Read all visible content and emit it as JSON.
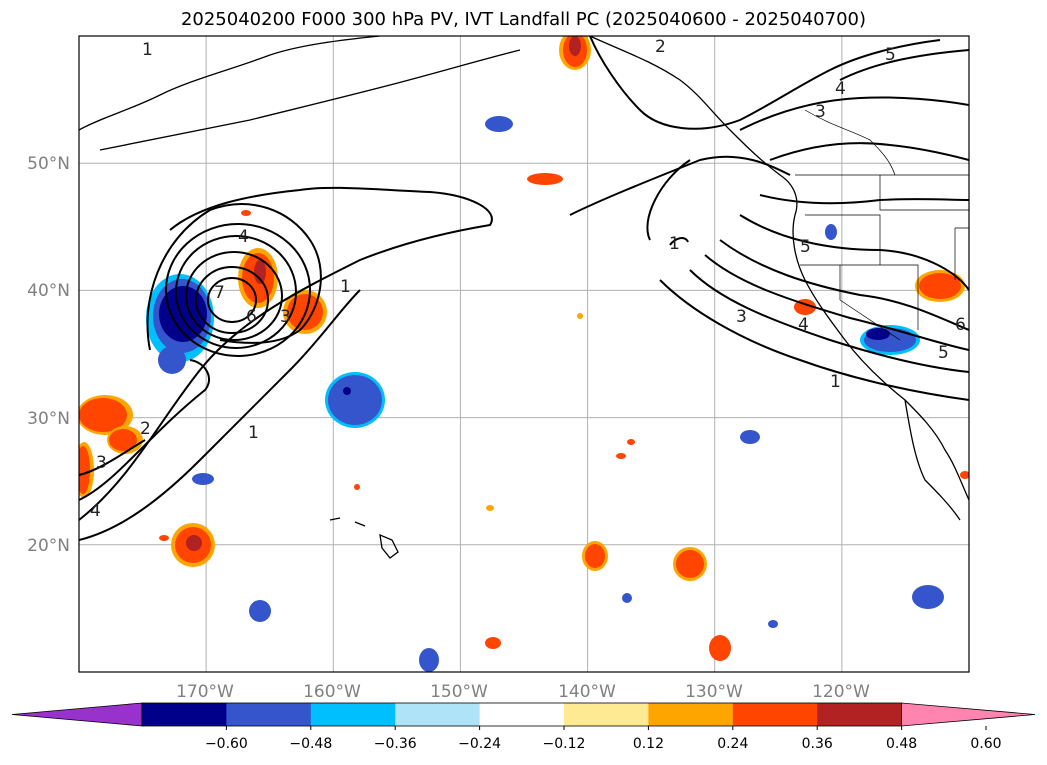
{
  "title": "2025040200 F000 300 hPa PV, IVT Landfall PC (2025040600 - 2025040700)",
  "map": {
    "lon_range": [
      -180,
      -110
    ],
    "lat_range": [
      10,
      60
    ],
    "lon_labels": [
      "170°W",
      "160°W",
      "150°W",
      "140°W",
      "130°W",
      "120°W"
    ],
    "lat_labels": [
      "50°N",
      "40°N",
      "30°N",
      "20°N"
    ],
    "gridlines": true,
    "fields": [
      "300 hPa PV anomaly (filled)",
      "IVT Landfall PC (contours)"
    ],
    "contour_labels": [
      "1",
      "2",
      "3",
      "4",
      "5",
      "6",
      "7"
    ]
  },
  "colorbar": {
    "ticks": [
      "−0.60",
      "−0.48",
      "−0.36",
      "−0.24",
      "−0.12",
      "0.12",
      "0.24",
      "0.36",
      "0.48",
      "0.60"
    ],
    "colors": [
      "#9932cc",
      "#00008b",
      "#3555cc",
      "#00bfff",
      "#aee3f8",
      "#ffffff",
      "#ffea94",
      "#ffa500",
      "#ff4500",
      "#b22222",
      "#ff85b0"
    ],
    "extend": "both"
  }
}
